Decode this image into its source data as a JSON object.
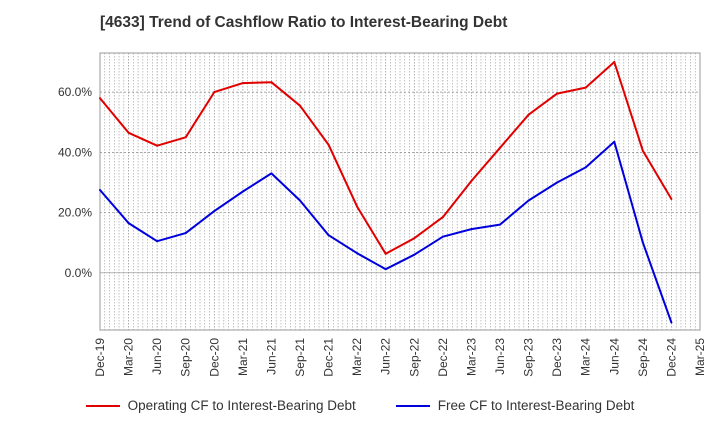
{
  "title": "[4633]  Trend of Cashflow Ratio to Interest-Bearing Debt",
  "chart_data": {
    "type": "line",
    "title": "[4633]  Trend of Cashflow Ratio to Interest-Bearing Debt",
    "xlabel": "",
    "ylabel": "",
    "ylim": [
      -19,
      73
    ],
    "y_ticks": [
      0,
      20,
      40,
      60
    ],
    "y_tick_labels": [
      "0.0%",
      "20.0%",
      "40.0%",
      "60.0%"
    ],
    "categories": [
      "Dec-19",
      "Mar-20",
      "Jun-20",
      "Sep-20",
      "Dec-20",
      "Mar-21",
      "Jun-21",
      "Sep-21",
      "Dec-21",
      "Mar-22",
      "Jun-22",
      "Sep-22",
      "Dec-22",
      "Mar-23",
      "Jun-23",
      "Sep-23",
      "Dec-23",
      "Mar-24",
      "Jun-24",
      "Sep-24",
      "Dec-24",
      "Mar-25"
    ],
    "grid": true,
    "legend_position": "bottom",
    "series": [
      {
        "name": "Operating CF to Interest-Bearing Debt",
        "color": "#e00000",
        "values": [
          58,
          46.5,
          42.2,
          45,
          60,
          63,
          63.3,
          55.5,
          42.5,
          22,
          6.3,
          11.5,
          18.5,
          30.5,
          41.5,
          52.5,
          59.5,
          61.5,
          70,
          40.5,
          24.5,
          null
        ]
      },
      {
        "name": "Free CF to Interest-Bearing Debt",
        "color": "#0000dd",
        "values": [
          27.5,
          16.5,
          10.5,
          13.2,
          20.5,
          27,
          33,
          24,
          12.5,
          6.5,
          1.2,
          6,
          12,
          14.5,
          16,
          24,
          30,
          35,
          43.5,
          10,
          -16.5,
          null
        ]
      }
    ]
  }
}
